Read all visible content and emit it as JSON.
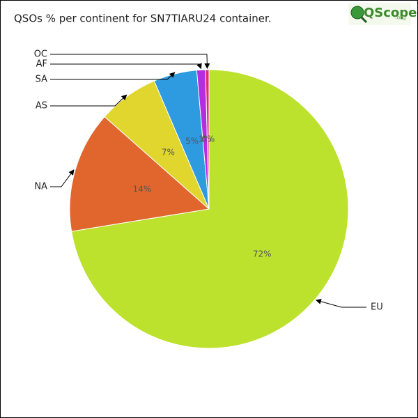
{
  "chart_data": {
    "type": "pie",
    "title": "QSOs % per continent for SN7TIARU24 container.",
    "logo": "QScope",
    "logo_suffix": ".org",
    "categories": [
      "EU",
      "NA",
      "AS",
      "SA",
      "AF",
      "OC"
    ],
    "values": [
      72,
      14,
      7,
      5,
      1,
      0.4
    ],
    "value_labels": [
      "72%",
      "14%",
      "7%",
      "5%",
      "1%",
      "0%"
    ],
    "colors": [
      "#bde22e",
      "#e0662e",
      "#e0d62e",
      "#2e9ae0",
      "#b42ee0",
      "#e02e6a"
    ]
  }
}
